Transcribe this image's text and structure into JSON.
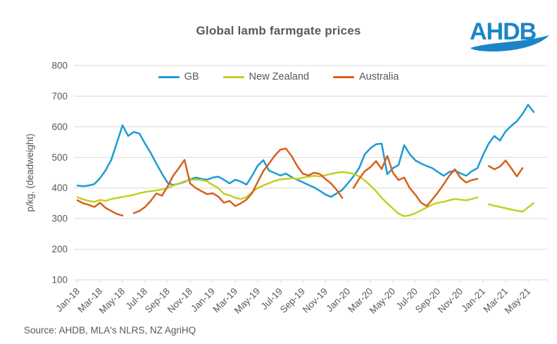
{
  "logo": {
    "text": "AHDB",
    "color": "#1b85c7"
  },
  "source": "Source: AHDB, MLA's NLRS, NZ AgriHQ",
  "chart_data": {
    "type": "line",
    "title": "Global lamb farmgate prices",
    "xlabel": "",
    "ylabel": "p/kg, (deadweight)",
    "ylim": [
      100,
      800
    ],
    "ytick_step": 100,
    "grid": "horizontal",
    "grid_color": "#d9d9d9",
    "axis_text_color": "#595959",
    "legend_position": "top-center",
    "x_tick_labels": [
      "Jan-18",
      "Mar-18",
      "May-18",
      "Jul-18",
      "Sep-18",
      "Nov-18",
      "Jan-19",
      "Mar-19",
      "May-19",
      "Jul-19",
      "Sep-19",
      "Nov-19",
      "Jan-20",
      "Mar-20",
      "May-20",
      "Jul-20",
      "Sep-20",
      "Nov-20",
      "Jan-21",
      "Mar-21",
      "May-21"
    ],
    "points_per_tick": 4,
    "sampling": "two points per month, Jan-2018 to mid-May-2021; null = gap in reported prices",
    "series": [
      {
        "name": "GB",
        "color": "#1f9ad4",
        "values": [
          408,
          406,
          408,
          413,
          432,
          458,
          492,
          548,
          605,
          570,
          583,
          578,
          545,
          515,
          480,
          447,
          417,
          410,
          414,
          420,
          428,
          434,
          430,
          427,
          434,
          437,
          427,
          415,
          427,
          421,
          411,
          440,
          473,
          491,
          457,
          449,
          441,
          447,
          436,
          427,
          419,
          410,
          402,
          391,
          379,
          371,
          382,
          394,
          415,
          438,
          465,
          510,
          530,
          543,
          545,
          445,
          465,
          475,
          540,
          510,
          490,
          480,
          472,
          465,
          452,
          440,
          452,
          457,
          448,
          440,
          455,
          465,
          508,
          545,
          570,
          555,
          585,
          603,
          618,
          642,
          672,
          648
        ]
      },
      {
        "name": "New Zealand",
        "color": "#c3d021",
        "values": [
          370,
          363,
          358,
          355,
          361,
          358,
          364,
          367,
          371,
          374,
          378,
          383,
          387,
          390,
          392,
          395,
          400,
          408,
          415,
          422,
          426,
          428,
          426,
          422,
          410,
          400,
          381,
          376,
          368,
          364,
          370,
          387,
          400,
          408,
          416,
          423,
          428,
          430,
          432,
          430,
          434,
          437,
          440,
          438,
          442,
          446,
          450,
          452,
          450,
          446,
          438,
          425,
          408,
          390,
          368,
          350,
          333,
          316,
          308,
          311,
          318,
          327,
          337,
          346,
          352,
          355,
          360,
          364,
          362,
          360,
          364,
          369,
          null,
          347,
          342,
          338,
          334,
          330,
          326,
          323,
          337,
          351
        ]
      },
      {
        "name": "Australia",
        "color": "#d6611c",
        "values": [
          360,
          350,
          345,
          338,
          352,
          335,
          325,
          315,
          310,
          null,
          318,
          325,
          338,
          358,
          382,
          375,
          405,
          440,
          465,
          492,
          415,
          400,
          390,
          380,
          383,
          372,
          352,
          358,
          341,
          350,
          362,
          383,
          420,
          455,
          480,
          505,
          525,
          529,
          505,
          472,
          447,
          441,
          450,
          446,
          430,
          415,
          394,
          368,
          null,
          400,
          430,
          455,
          468,
          488,
          462,
          505,
          450,
          426,
          434,
          399,
          378,
          352,
          341,
          363,
          386,
          412,
          440,
          461,
          433,
          418,
          426,
          430,
          null,
          472,
          461,
          470,
          490,
          465,
          438,
          465,
          null,
          null
        ]
      }
    ]
  }
}
